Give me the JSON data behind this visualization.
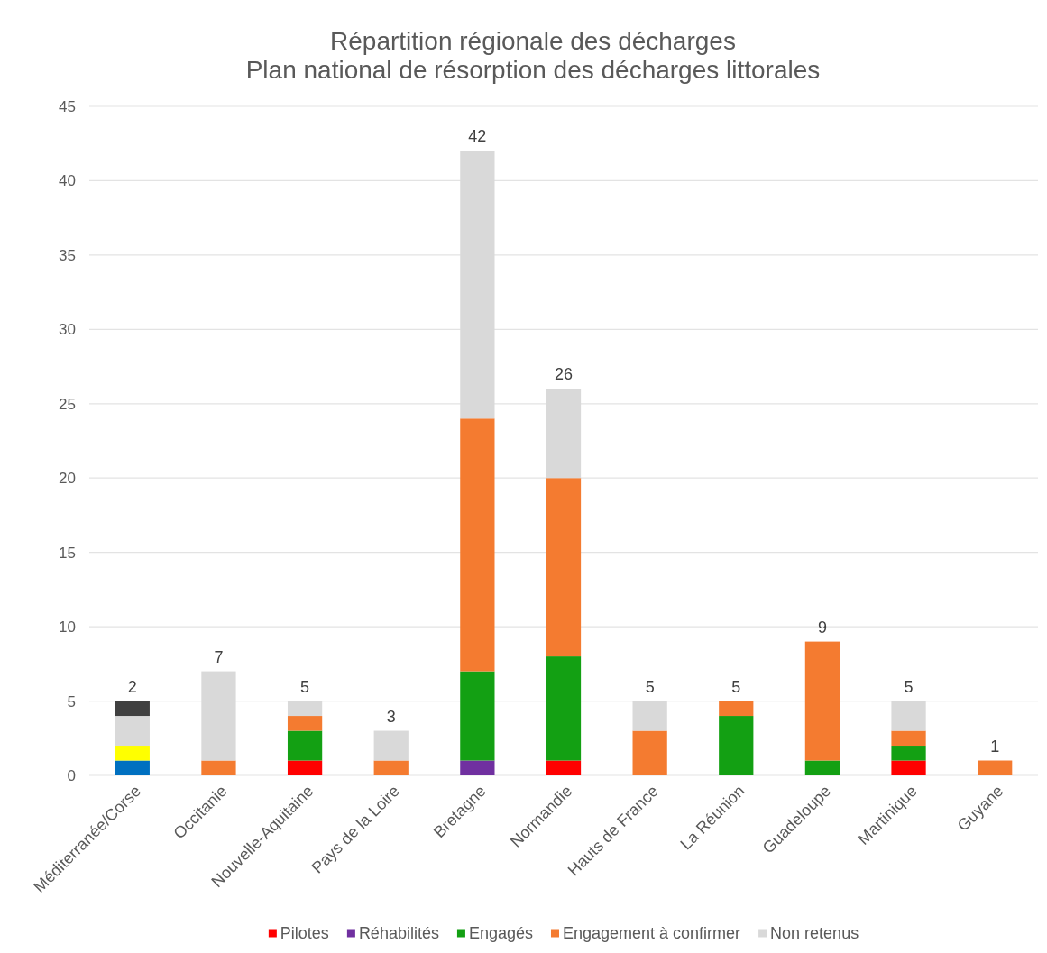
{
  "chart_data": {
    "type": "bar",
    "stacked": true,
    "title": "Répartition régionale des décharges",
    "subtitle": "Plan national de résorption des décharges littorales",
    "categories": [
      "Méditerranée/Corse",
      "Occitanie",
      "Nouvelle-Aquitaine",
      "Pays de la Loire",
      "Bretagne",
      "Normandie",
      "Hauts de France",
      "La Réunion",
      "Guadeloupe",
      "Martinique",
      "Guyane"
    ],
    "series": [
      {
        "color": "#0070c0",
        "values": [
          1,
          null,
          null,
          null,
          null,
          null,
          null,
          null,
          null,
          null,
          null
        ]
      },
      {
        "color": "#ffff00",
        "values": [
          1,
          null,
          null,
          null,
          null,
          null,
          null,
          null,
          null,
          null,
          null
        ]
      },
      {
        "name": "Pilotes",
        "color": "#ff0000",
        "values": [
          null,
          null,
          1,
          null,
          null,
          1,
          null,
          null,
          null,
          1,
          null
        ]
      },
      {
        "name": "Réhabilités",
        "color": "#7030a0",
        "values": [
          null,
          null,
          null,
          null,
          1,
          null,
          null,
          null,
          null,
          null,
          null
        ]
      },
      {
        "name": "Engagés",
        "color": "#13a013",
        "values": [
          null,
          null,
          2,
          null,
          6,
          7,
          null,
          4,
          1,
          1,
          null
        ]
      },
      {
        "name": "Engagement à confirmer",
        "color": "#f47b30",
        "values": [
          null,
          1,
          1,
          1,
          17,
          12,
          3,
          1,
          8,
          1,
          1
        ]
      },
      {
        "name": "Non retenus",
        "color": "#d9d9d9",
        "values": [
          2,
          6,
          1,
          2,
          18,
          6,
          2,
          null,
          null,
          2,
          null
        ]
      },
      {
        "color": "#404040",
        "values": [
          1,
          null,
          null,
          null,
          null,
          null,
          null,
          null,
          null,
          null,
          null
        ]
      }
    ],
    "totals": [
      "2",
      "7",
      "5",
      "3",
      "42",
      "26",
      "5",
      "5",
      "9",
      "5",
      "1"
    ],
    "ylim": [
      0,
      45
    ],
    "yticks": [
      0,
      5,
      10,
      15,
      20,
      25,
      30,
      35,
      40,
      45
    ],
    "grid": "y",
    "legend": "bottom"
  }
}
